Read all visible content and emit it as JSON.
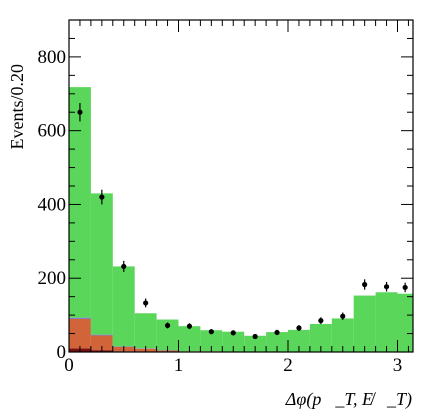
{
  "chart_data": {
    "type": "bar",
    "xlabel": "Δφ(p⃗_T, E̸⃗_T)",
    "ylabel": "Events/0.20",
    "xlim": [
      0,
      3.1416
    ],
    "ylim": [
      0,
      900
    ],
    "x_ticks": [
      "0",
      "1",
      "2",
      "3"
    ],
    "y_ticks": [
      "0",
      "200",
      "400",
      "600",
      "800"
    ],
    "bin_width": 0.2,
    "bin_edges": [
      0.0,
      0.2,
      0.4,
      0.6,
      0.8,
      1.0,
      1.2,
      1.4,
      1.6,
      1.8,
      2.0,
      2.2,
      2.4,
      2.6,
      2.8,
      3.0,
      3.1416
    ],
    "stack": [
      {
        "color": "#7a1010",
        "values": [
          10,
          5,
          2,
          1,
          1,
          0,
          0,
          0,
          0,
          0,
          0,
          0,
          0,
          0,
          0,
          0
        ]
      },
      {
        "color": "#d2643a",
        "values": [
          80,
          40,
          12,
          8,
          3,
          2,
          2,
          1,
          1,
          1,
          1,
          1,
          1,
          1,
          1,
          1
        ]
      },
      {
        "color": "#6a6ad0",
        "values": [
          3,
          2,
          1,
          1,
          1,
          0,
          0,
          0,
          0,
          0,
          0,
          0,
          0,
          0,
          0,
          0
        ]
      },
      {
        "color": "#5ad65a",
        "values": [
          625,
          383,
          217,
          95,
          83,
          68,
          57,
          54,
          43,
          53,
          59,
          75,
          90,
          152,
          161,
          157
        ]
      }
    ],
    "data_points": [
      {
        "x": 0.1,
        "y": 650,
        "err": 25
      },
      {
        "x": 0.3,
        "y": 420,
        "err": 20
      },
      {
        "x": 0.5,
        "y": 232,
        "err": 15
      },
      {
        "x": 0.7,
        "y": 133,
        "err": 12
      },
      {
        "x": 0.9,
        "y": 72,
        "err": 8
      },
      {
        "x": 1.1,
        "y": 70,
        "err": 8
      },
      {
        "x": 1.3,
        "y": 55,
        "err": 7
      },
      {
        "x": 1.5,
        "y": 52,
        "err": 7
      },
      {
        "x": 1.7,
        "y": 42,
        "err": 6
      },
      {
        "x": 1.9,
        "y": 53,
        "err": 7
      },
      {
        "x": 2.1,
        "y": 65,
        "err": 8
      },
      {
        "x": 2.3,
        "y": 85,
        "err": 9
      },
      {
        "x": 2.5,
        "y": 97,
        "err": 10
      },
      {
        "x": 2.7,
        "y": 183,
        "err": 14
      },
      {
        "x": 2.9,
        "y": 177,
        "err": 13
      },
      {
        "x": 3.07,
        "y": 175,
        "err": 13
      }
    ]
  }
}
